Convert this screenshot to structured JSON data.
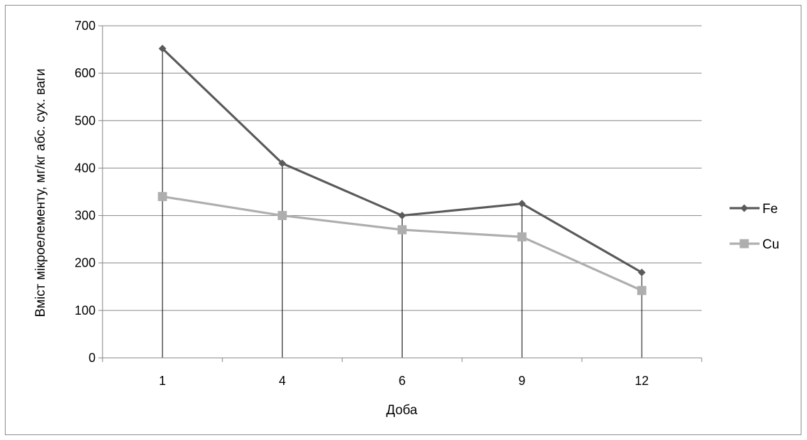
{
  "chart_data": {
    "type": "line",
    "title": "",
    "xlabel": "Доба",
    "ylabel": "Вміст мікроелементу, мг/кг абс. сух. ваги",
    "categories": [
      "1",
      "4",
      "6",
      "9",
      "12"
    ],
    "yticks": [
      "0",
      "100",
      "200",
      "300",
      "400",
      "500",
      "600",
      "700"
    ],
    "ylim": [
      0,
      700
    ],
    "grid": true,
    "drop_lines": true,
    "legend_position": "right",
    "series": [
      {
        "name": "Fe",
        "values": [
          652,
          410,
          300,
          325,
          180
        ],
        "color": "#5a5a5a",
        "marker": "diamond"
      },
      {
        "name": "Cu",
        "values": [
          340,
          300,
          270,
          255,
          142
        ],
        "color": "#aeaeae",
        "marker": "square"
      }
    ]
  }
}
